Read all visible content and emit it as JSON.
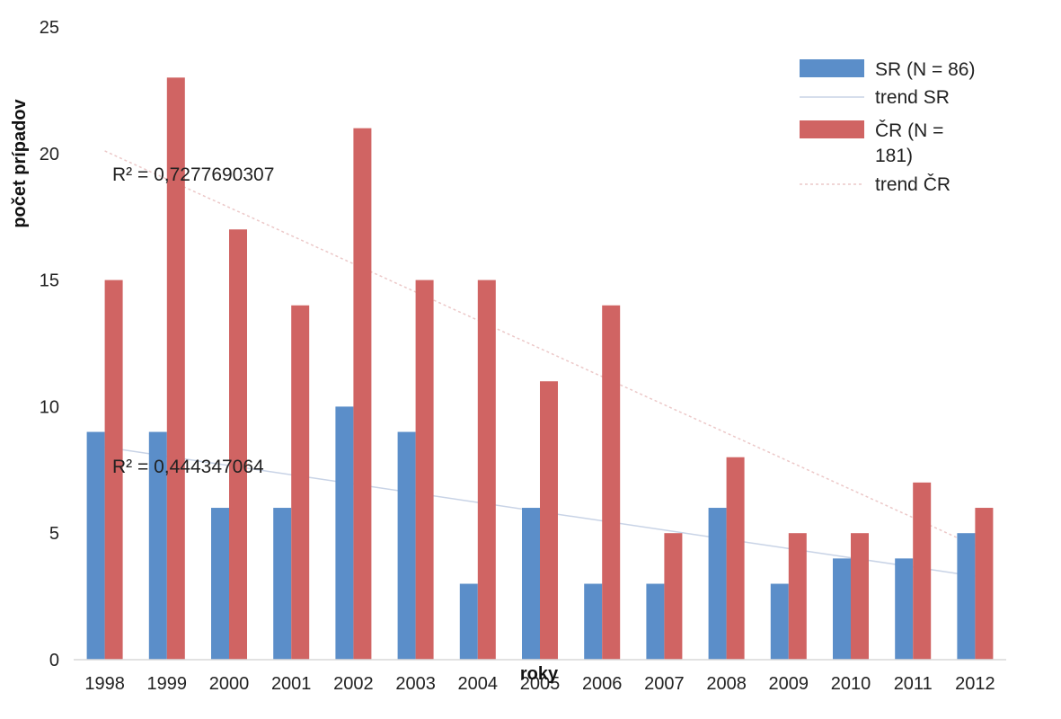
{
  "chart_data": {
    "type": "bar",
    "title": "",
    "xlabel": "roky",
    "ylabel": "počet prípadov",
    "ylim": [
      0,
      25
    ],
    "yticks": [
      0,
      5,
      10,
      15,
      20,
      25
    ],
    "grid": false,
    "legend_position": "top-right",
    "categories": [
      "1998",
      "1999",
      "2000",
      "2001",
      "2002",
      "2003",
      "2004",
      "2005",
      "2006",
      "2007",
      "2008",
      "2009",
      "2010",
      "2011",
      "2012"
    ],
    "series": [
      {
        "name": "SR (N = 86)",
        "color": "#5b8ec9",
        "values": [
          9,
          9,
          6,
          6,
          10,
          9,
          3,
          6,
          3,
          3,
          6,
          3,
          4,
          4,
          5
        ]
      },
      {
        "name": "ČR (N = 181)",
        "color": "#d06463",
        "values": [
          15,
          23,
          17,
          14,
          21,
          15,
          15,
          11,
          14,
          5,
          8,
          5,
          5,
          7,
          6
        ]
      }
    ],
    "trendlines": [
      {
        "name": "trend SR",
        "series": "SR (N = 86)",
        "color": "#c8d3e6",
        "r2_label": "R² = 0,444347064",
        "start": 8.4,
        "end": 3.3
      },
      {
        "name": "trend ČR",
        "series": "ČR (N = 181)",
        "color": "#ecc8c8",
        "r2_label": "R² = 0,7277690307",
        "start": 20.1,
        "end": 4.5
      }
    ],
    "legend_labels": {
      "sr": "SR (N = 86)",
      "trend_sr": "trend SR",
      "cr_line1": "ČR (N =",
      "cr_line2": "181)",
      "trend_cr": "trend ČR"
    }
  }
}
